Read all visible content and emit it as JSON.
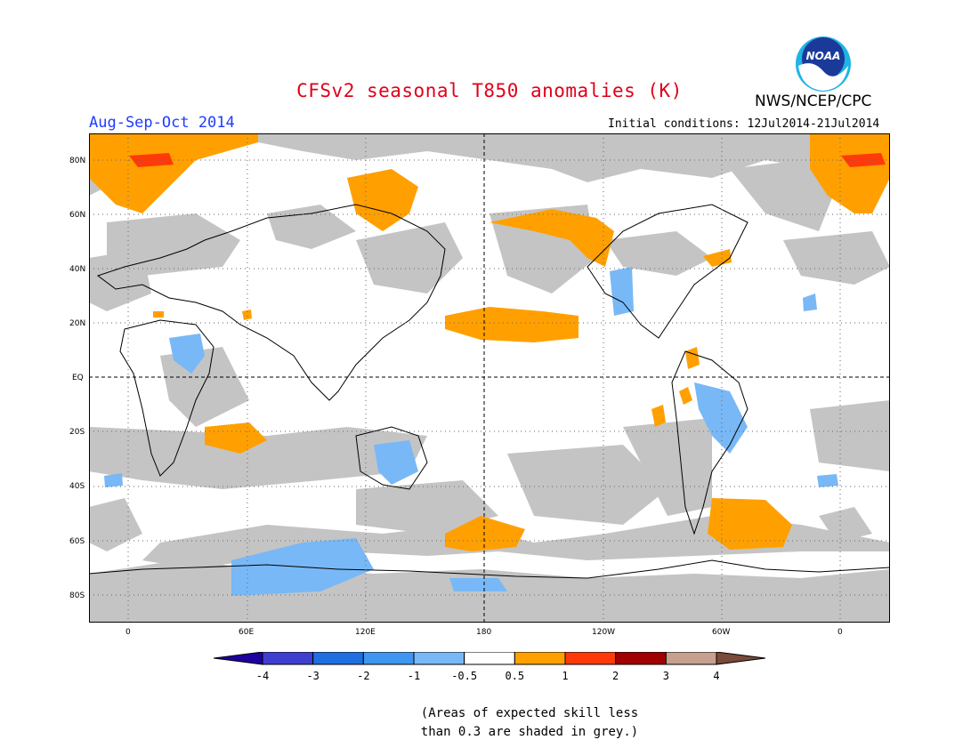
{
  "title": "CFSv2 seasonal T850 anomalies (K)",
  "organization": "NWS/NCEP/CPC",
  "season": "Aug-Sep-Oct 2014",
  "initial_conditions": "Initial conditions: 12Jul2014-21Jul2014",
  "logo_text": "NOAA",
  "lat_labels": [
    "80N",
    "60N",
    "40N",
    "20N",
    "EQ",
    "20S",
    "40S",
    "60S",
    "80S"
  ],
  "lon_labels": [
    "0",
    "60E",
    "120E",
    "180",
    "120W",
    "60W",
    "0"
  ],
  "colorbar": {
    "colors": [
      "#1e00a0",
      "#3f3fcf",
      "#1f6fe0",
      "#3f96f0",
      "#78b8f6",
      "#ffffff",
      "#ffa000",
      "#ff3a0a",
      "#a10000",
      "#c8a090",
      "#7a4a3a"
    ],
    "labels": [
      "-4",
      "-3",
      "-2",
      "-1",
      "-0.5",
      "0.5",
      "1",
      "2",
      "3",
      "4"
    ]
  },
  "note_line1": "(Areas of expected skill less",
  "note_line2": "than 0.3 are shaded in grey.)",
  "colors": {
    "skill_grey": "#c4c4c4",
    "warm_anomaly": "#ffa000",
    "cool_anomaly": "#78b8f6",
    "strong_warm": "#ff3a0a"
  }
}
